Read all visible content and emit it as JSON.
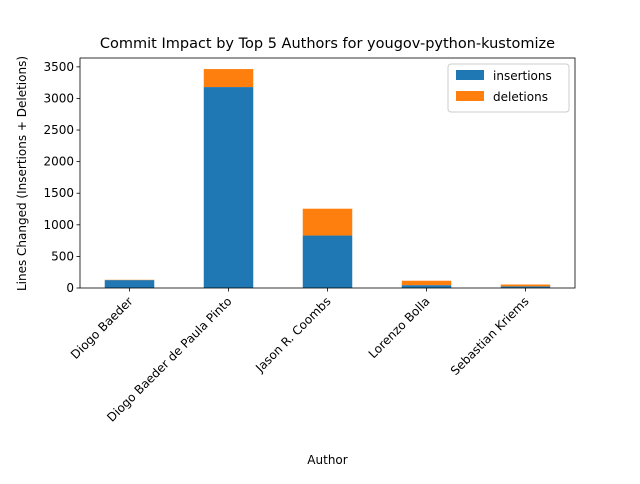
{
  "chart_data": {
    "type": "bar",
    "stacked": true,
    "title": "Commit Impact by Top 5 Authors for yougov-python-kustomize",
    "xlabel": "Author",
    "ylabel": "Lines Changed (Insertions + Deletions)",
    "categories": [
      "Diogo Baeder",
      "Diogo Baeder de Paula Pinto",
      "Jason R. Coombs",
      "Lorenzo Bolla",
      "Sebastian Kriems"
    ],
    "series": [
      {
        "name": "insertions",
        "color": "#1f77b4",
        "values": [
          125,
          3180,
          830,
          45,
          25
        ]
      },
      {
        "name": "deletions",
        "color": "#ff7f0e",
        "values": [
          5,
          285,
          425,
          70,
          30
        ]
      }
    ],
    "ylim": [
      0,
      3640
    ],
    "yticks": [
      0,
      500,
      1000,
      1500,
      2000,
      2500,
      3000,
      3500
    ],
    "legend_position": "top-right",
    "grid": false
  }
}
